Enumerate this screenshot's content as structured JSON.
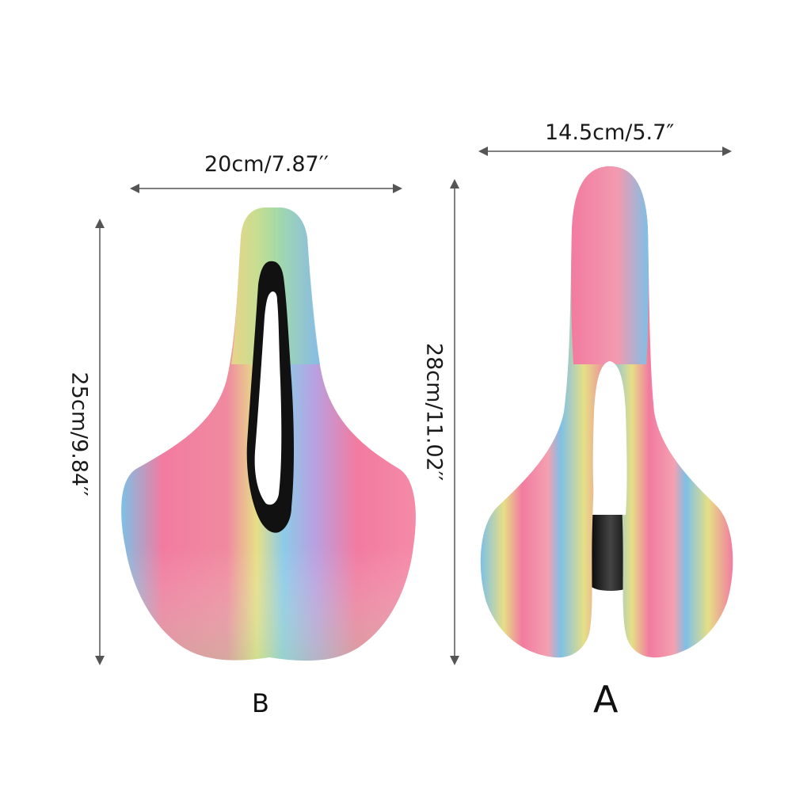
{
  "saddle_b": {
    "label": "B",
    "width_text": "20cm/7.87′′",
    "height_text": "25cm/9.84′′"
  },
  "saddle_a": {
    "label": "A",
    "width_text": "14.5cm/5.7″",
    "height_text": "28cm/11.02′′"
  },
  "colors": {
    "pink": "#f27ba0",
    "yellow": "#e6df86",
    "green": "#a8dc9c",
    "blue": "#7ec0e6",
    "violet": "#b9a0e0",
    "rail": "#111111",
    "arrow": "#555555"
  }
}
